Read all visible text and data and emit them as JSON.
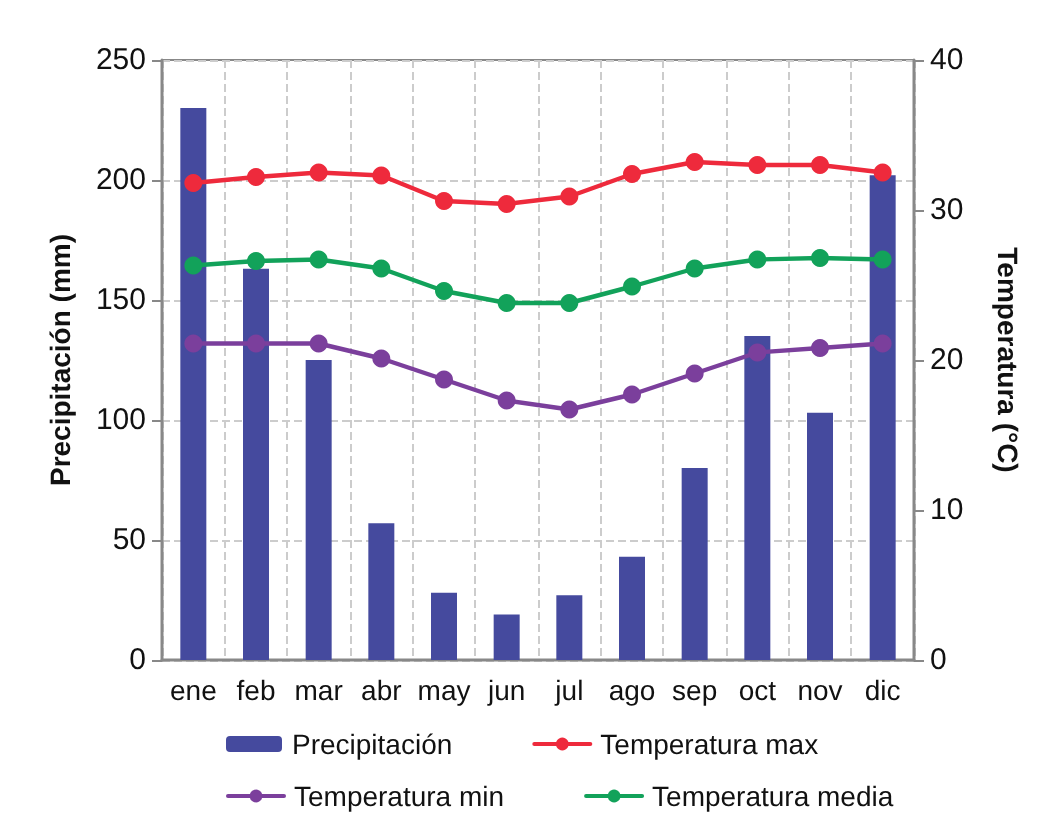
{
  "chart_data": {
    "type": "bar",
    "categories": [
      "ene",
      "feb",
      "mar",
      "abr",
      "may",
      "jun",
      "jul",
      "ago",
      "sep",
      "oct",
      "nov",
      "dic"
    ],
    "ylabel": "Precipitación (mm)",
    "y2label": "Temperatura (°C)",
    "series": [
      {
        "name": "Precipitación",
        "color": "#454a9e",
        "values": [
          230,
          163,
          125,
          57,
          28,
          19,
          27,
          43,
          80,
          135,
          103,
          202
        ]
      },
      {
        "name": "Temperatura max",
        "type": "line",
        "axis": "y2",
        "color": "#ee2a3c",
        "values": [
          31.8,
          32.2,
          32.5,
          32.3,
          30.6,
          30.4,
          30.9,
          32.4,
          33.2,
          33.0,
          33.0,
          32.5
        ]
      },
      {
        "name": "Temperatura min",
        "type": "line",
        "axis": "y2",
        "color": "#7b3f9c",
        "values": [
          21.1,
          21.1,
          21.1,
          20.1,
          18.7,
          17.3,
          16.7,
          17.7,
          19.1,
          20.5,
          20.8,
          21.1
        ]
      },
      {
        "name": "Temperatura media",
        "type": "line",
        "axis": "y2",
        "color": "#12a25a",
        "values": [
          26.3,
          26.6,
          26.7,
          26.1,
          24.6,
          23.8,
          23.8,
          24.9,
          26.1,
          26.7,
          26.8,
          26.7
        ]
      }
    ],
    "ylim": [
      0,
      250
    ],
    "yticks": [
      0,
      50,
      100,
      150,
      200,
      250
    ],
    "y2lim": [
      0,
      40
    ],
    "y2ticks": [
      0,
      10,
      20,
      30,
      40
    ],
    "grid": true,
    "legend": "bottom",
    "marker": "circle",
    "line_style": "solid"
  }
}
